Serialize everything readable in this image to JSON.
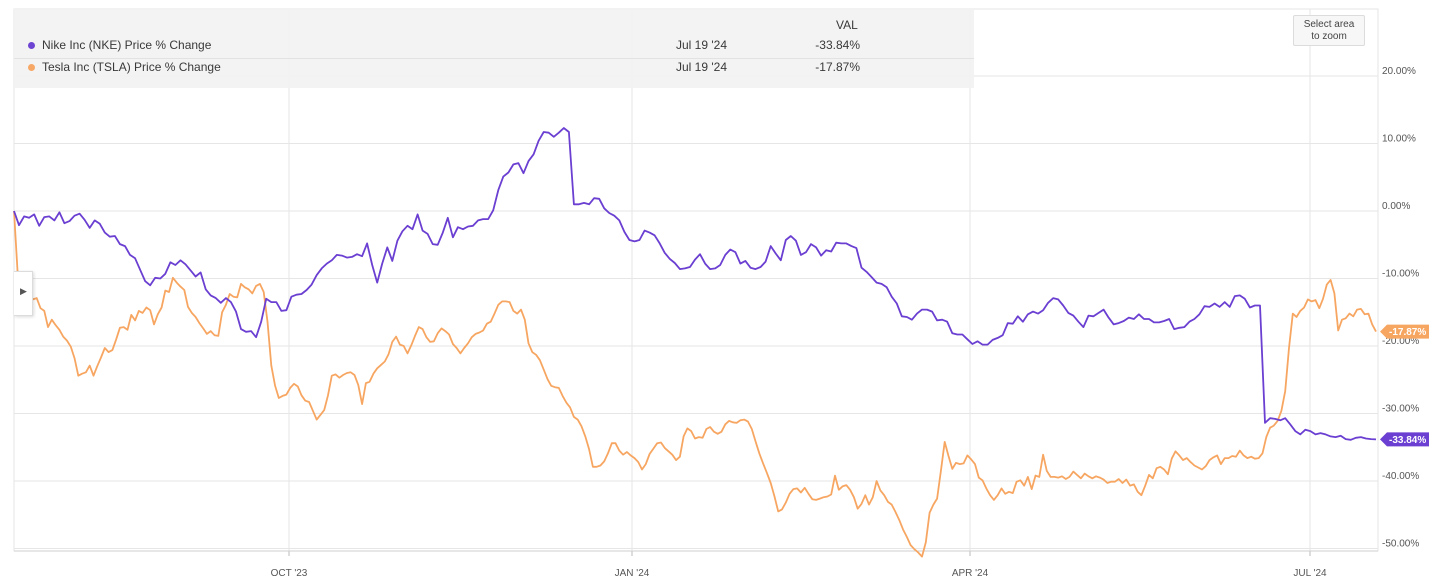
{
  "legend": {
    "column_header": "VAL",
    "rows": [
      {
        "name": "Nike Inc (NKE) Price % Change",
        "date": "Jul 19 '24",
        "value": "-33.84%",
        "color": "#6a3fd1"
      },
      {
        "name": "Tesla Inc (TSLA) Price % Change",
        "date": "Jul 19 '24",
        "value": "-17.87%",
        "color": "#f7a662"
      }
    ]
  },
  "zoom_button": "Select area\nto zoom",
  "side_tab_icon": "chevron-right-icon",
  "chart_data": {
    "type": "line",
    "x_labels": [
      "OCT '23",
      "JAN '24",
      "APR '24",
      "JUL '24"
    ],
    "y_ticks": [
      "20.00%",
      "10.00%",
      "0.00%",
      "-10.00%",
      "-20.00%",
      "-30.00%",
      "-40.00%",
      "-50.00%"
    ],
    "ylim": [
      -51,
      21
    ],
    "grid": true,
    "end_labels": [
      "-33.84%",
      "-17.87%"
    ],
    "series": [
      {
        "name": "Nike Inc (NKE) Price % Change",
        "color": "#6a3fd1",
        "values": [
          0,
          -2.1,
          -0.8,
          -1,
          -0.5,
          -2.2,
          -0.9,
          -0.8,
          -1.4,
          -0.2,
          -1.8,
          -1.5,
          -0.7,
          -0.4,
          -1.3,
          -2.5,
          -1.4,
          -1.9,
          -3.2,
          -3.8,
          -3.7,
          -4.9,
          -5.2,
          -6.5,
          -7,
          -8.7,
          -10.4,
          -11,
          -9.9,
          -10,
          -9.3,
          -7.6,
          -8,
          -7.3,
          -7.9,
          -8.8,
          -9.7,
          -9.1,
          -11.6,
          -12.5,
          -12.9,
          -13.6,
          -12.9,
          -13.5,
          -14.9,
          -17.5,
          -17.9,
          -17.8,
          -18.7,
          -16.4,
          -13,
          -13.5,
          -13.5,
          -14.8,
          -14.7,
          -12.7,
          -12.4,
          -12.3,
          -11.7,
          -10.9,
          -9.5,
          -8.5,
          -7.8,
          -7.3,
          -6.5,
          -6.6,
          -6.9,
          -6.8,
          -6.4,
          -6.7,
          -4.8,
          -8,
          -10.6,
          -7.8,
          -5.4,
          -7.4,
          -4.4,
          -3,
          -2.2,
          -2.7,
          -0.5,
          -2.9,
          -3.4,
          -4.9,
          -5,
          -3.2,
          -1,
          -3.9,
          -2.4,
          -2.7,
          -2.3,
          -2.2,
          -1.4,
          -1.2,
          -1.2,
          0.1,
          3.1,
          5.1,
          5.7,
          6.9,
          7.1,
          5.6,
          7.4,
          8.4,
          10.4,
          11.7,
          11.6,
          11,
          11.6,
          12.3,
          11.7,
          1,
          1,
          1.2,
          1,
          1.9,
          1.8,
          0.4,
          -0.3,
          -0.7,
          -1.4,
          -3.1,
          -4.3,
          -4.5,
          -4.3,
          -2.9,
          -3.2,
          -3.6,
          -4.8,
          -6.2,
          -7.1,
          -7.7,
          -8.6,
          -8.5,
          -8.3,
          -7.2,
          -6.4,
          -7.8,
          -8.6,
          -8.5,
          -8,
          -6.5,
          -5.7,
          -6.1,
          -7.8,
          -7.4,
          -8.4,
          -8.6,
          -8.3,
          -7.5,
          -5.2,
          -6.3,
          -7.3,
          -4.3,
          -3.7,
          -4.4,
          -6.5,
          -6.1,
          -4.9,
          -5.4,
          -6.6,
          -5.8,
          -6,
          -4.7,
          -4.8,
          -4.8,
          -5.2,
          -5.5,
          -8.4,
          -9,
          -9.8,
          -10.6,
          -10.8,
          -11.3,
          -12.7,
          -13.7,
          -15.6,
          -15.7,
          -16.1,
          -15.2,
          -14.6,
          -14.6,
          -14.9,
          -16.2,
          -16.1,
          -16.4,
          -18.1,
          -18.3,
          -18.3,
          -19,
          -19.7,
          -19.3,
          -19.8,
          -19.8,
          -19.1,
          -18.8,
          -18.4,
          -16.6,
          -16.7,
          -15.6,
          -16.4,
          -15.3,
          -14.9,
          -15.2,
          -14.7,
          -13.6,
          -12.9,
          -13.1,
          -14,
          -15.1,
          -15.5,
          -16.4,
          -17.2,
          -15.5,
          -15.6,
          -15.1,
          -14.6,
          -15.8,
          -16.8,
          -16.6,
          -16.3,
          -15.8,
          -16,
          -15.3,
          -16,
          -16,
          -16.5,
          -16.5,
          -16.3,
          -16,
          -17.5,
          -17.3,
          -17.2,
          -16.4,
          -16,
          -15.3,
          -14.1,
          -14.2,
          -13.7,
          -14.2,
          -13.5,
          -14.2,
          -12.6,
          -12.5,
          -13,
          -14.3,
          -14,
          -14,
          -31.4,
          -30.7,
          -30.8,
          -31,
          -30.7,
          -31.6,
          -32.6,
          -33.1,
          -32.4,
          -32.6,
          -33.1,
          -32.9,
          -33.1,
          -33.4,
          -33.5,
          -33.3,
          -33.8,
          -33.9,
          -33.6,
          -33.5,
          -33.7,
          -33.8,
          -33.84
        ]
      },
      {
        "name": "Tesla Inc (TSLA) Price % Change",
        "color": "#f7a662",
        "values": [
          0,
          -9.6,
          -10.9,
          -10.2,
          -12.2,
          -13.1,
          -12.9,
          -14.4,
          -14.8,
          -17.2,
          -16.1,
          -16.9,
          -17.6,
          -18.6,
          -19.2,
          -20.1,
          -21.8,
          -24.4,
          -24.1,
          -23.9,
          -22.9,
          -24.4,
          -23,
          -21.7,
          -20.3,
          -20.9,
          -20.6,
          -19,
          -17.3,
          -17.2,
          -17.6,
          -15.4,
          -16.2,
          -14.8,
          -15.1,
          -14.3,
          -14.7,
          -16.8,
          -15.3,
          -14.3,
          -11.8,
          -12,
          -9.9,
          -10.6,
          -11.2,
          -11.7,
          -14.2,
          -15.1,
          -15.7,
          -16.6,
          -17.4,
          -18.2,
          -17.8,
          -18.4,
          -18.5,
          -15,
          -13.9,
          -12.3,
          -12.7,
          -12.8,
          -10.8,
          -11.3,
          -11.6,
          -12.2,
          -11.1,
          -10.8,
          -12,
          -16.4,
          -22.9,
          -25.9,
          -27.7,
          -27.4,
          -27.2,
          -26.2,
          -25.6,
          -26,
          -27.3,
          -28.1,
          -28.3,
          -29.6,
          -30.9,
          -30.2,
          -29.5,
          -27.3,
          -24.4,
          -24.2,
          -24.7,
          -24.3,
          -24,
          -23.9,
          -24.3,
          -25.8,
          -28.6,
          -25.5,
          -25.3,
          -24.1,
          -23.3,
          -22.8,
          -22.3,
          -21.2,
          -19.4,
          -18.6,
          -19.8,
          -20,
          -21.1,
          -19.9,
          -18.5,
          -17.2,
          -17.5,
          -18.7,
          -19.4,
          -19.3,
          -18.1,
          -17.4,
          -17.8,
          -18.3,
          -19.7,
          -20.3,
          -21.1,
          -20.3,
          -19.6,
          -18.7,
          -18.2,
          -18,
          -17.7,
          -16.7,
          -16.4,
          -15.2,
          -13.9,
          -13.4,
          -13.4,
          -13.5,
          -14.8,
          -15.2,
          -14.6,
          -16.1,
          -19.6,
          -20.9,
          -21.3,
          -22.1,
          -23.5,
          -24.9,
          -25.9,
          -26.1,
          -26.2,
          -27.4,
          -28.4,
          -29.1,
          -30.5,
          -30.9,
          -31.9,
          -33.4,
          -35.3,
          -37.9,
          -37.9,
          -37.7,
          -37.1,
          -35.9,
          -34.4,
          -34.4,
          -35.5,
          -36.1,
          -35.7,
          -36.2,
          -36.6,
          -37.2,
          -38.3,
          -37.5,
          -36,
          -35.2,
          -34.4,
          -34.3,
          -35.1,
          -35.6,
          -36.1,
          -36.9,
          -36.4,
          -33.4,
          -32.2,
          -32.6,
          -33.7,
          -33.5,
          -33.6,
          -32.3,
          -32,
          -32.7,
          -33,
          -32.7,
          -31.6,
          -31.1,
          -31.3,
          -31.4,
          -31,
          -30.9,
          -31.2,
          -32.3,
          -34.1,
          -35.9,
          -37.4,
          -38.8,
          -40.3,
          -42.3,
          -44.5,
          -44.2,
          -43.2,
          -41.9,
          -41.2,
          -41.1,
          -41.7,
          -41,
          -41.9,
          -42.7,
          -42.8,
          -42.6,
          -42.4,
          -42.3,
          -42,
          -39.2,
          -41.3,
          -40.8,
          -40.6,
          -41.3,
          -42.4,
          -44.1,
          -43.4,
          -42.1,
          -43.5,
          -42.4,
          -40,
          -41.4,
          -42.1,
          -43.1,
          -43.5,
          -44.6,
          -45.8,
          -47.2,
          -48.3,
          -49.5,
          -50.1,
          -50.6,
          -51.2,
          -49.1,
          -44.7,
          -43.5,
          -42.6,
          -38.5,
          -34.2,
          -36.3,
          -38.2,
          -37.3,
          -37.5,
          -37.4,
          -36.2,
          -36.8,
          -37.5,
          -39.5,
          -39.9,
          -41.1,
          -42.1,
          -42.8,
          -42.1,
          -41.1,
          -41.9,
          -41.6,
          -41.8,
          -40.1,
          -39.9,
          -40.7,
          -39.4,
          -41.2,
          -39.2,
          -39.4,
          -36.1,
          -38.5,
          -39.4,
          -39.4,
          -39.5,
          -39.3,
          -39.7,
          -39.4,
          -38.6,
          -39.1,
          -39.6,
          -38.9,
          -39.3,
          -39.6,
          -39.3,
          -39.5,
          -39.8,
          -40.3,
          -40.1,
          -40.1,
          -39.7,
          -40.3,
          -39.8,
          -40.7,
          -40.5,
          -41.6,
          -42.1,
          -40.7,
          -39.1,
          -39.6,
          -38.1,
          -37.9,
          -38.3,
          -39,
          -36.7,
          -35.6,
          -36.2,
          -36.9,
          -36.6,
          -37.2,
          -37.7,
          -38,
          -38.3,
          -37.8,
          -36.9,
          -36.5,
          -36.2,
          -37.5,
          -36.6,
          -36.6,
          -36.3,
          -36.4,
          -35.5,
          -36.2,
          -36.6,
          -36.4,
          -36.7,
          -36.6,
          -35.9,
          -33.5,
          -32.1,
          -31.8,
          -31.1,
          -29.6,
          -26.7,
          -20.3,
          -15.2,
          -15.7,
          -14.8,
          -14.3,
          -13.1,
          -13.4,
          -13.2,
          -14.4,
          -13,
          -10.9,
          -10.2,
          -12.2,
          -17.7,
          -16.1,
          -15.9,
          -15.2,
          -15.6,
          -14.6,
          -14.5,
          -15.3,
          -15.2,
          -16.8,
          -17.87
        ]
      }
    ]
  }
}
